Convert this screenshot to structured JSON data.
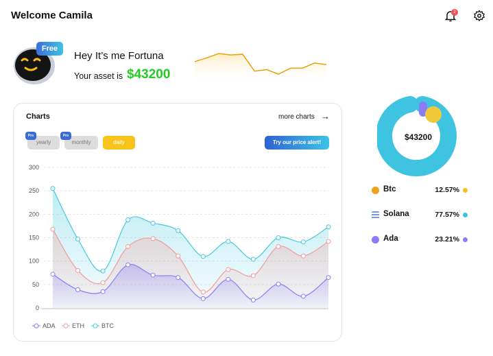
{
  "header": {
    "title": "Welcome Camila",
    "notification_count": "2",
    "icons": [
      "bell-icon",
      "gear-icon"
    ]
  },
  "profile": {
    "badge": "Free",
    "greeting": "Hey It’s me Fortuna",
    "asset_label": "Your asset is",
    "asset_value": "$43200",
    "sparkline": [
      89,
      84,
      78,
      80,
      79,
      102,
      100,
      106,
      98,
      98,
      91,
      93
    ],
    "sparkline_color": "#e8a20c"
  },
  "charts_card": {
    "title": "Charts",
    "more_link": "more charts",
    "tabs": [
      {
        "label": "yearly",
        "badge": "Pro"
      },
      {
        "label": "monthly",
        "badge": "Pro"
      },
      {
        "label": "daily"
      }
    ],
    "alert_button": "Try our price alert!"
  },
  "chart_data": {
    "type": "area",
    "ylim": [
      0,
      300
    ],
    "yticks": [
      "0",
      "50",
      "100",
      "150",
      "200",
      "250",
      "300"
    ],
    "grid": true,
    "legend_placement": "bottom-left",
    "series": [
      {
        "name": "ADA",
        "color": "#8b7cf6",
        "values": [
          72,
          39,
          35,
          92,
          70,
          65,
          20,
          61,
          17,
          51,
          25,
          65
        ]
      },
      {
        "name": "ETH",
        "color": "#f59a98",
        "values": [
          168,
          80,
          54,
          131,
          148,
          111,
          34,
          82,
          69,
          131,
          111,
          142
        ]
      },
      {
        "name": "BTC",
        "color": "#45c9e0",
        "values": [
          255,
          147,
          79,
          188,
          181,
          165,
          110,
          142,
          104,
          150,
          141,
          173
        ]
      }
    ]
  },
  "portfolio": {
    "total": "$43200",
    "items": [
      {
        "name": "Btc",
        "percent": "12.57%",
        "color": "#f5c21b",
        "icon": "bitcoin-icon"
      },
      {
        "name": "Solana",
        "percent": "77.57%",
        "color": "#3ec3e0",
        "icon": "solana-icon"
      },
      {
        "name": "Ada",
        "percent": "23.21%",
        "color": "#8b7cf6",
        "icon": "cardano-icon"
      }
    ]
  }
}
